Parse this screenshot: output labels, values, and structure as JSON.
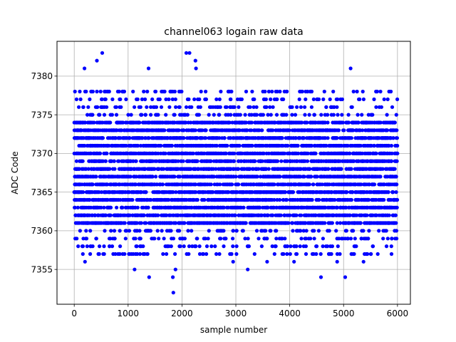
{
  "chart_data": {
    "type": "scatter",
    "title": "channel063 logain raw data",
    "xlabel": "sample number",
    "ylabel": "ADC Code",
    "xlim": [
      -320,
      6240
    ],
    "ylim": [
      7350.5,
      7384.5
    ],
    "xticks": [
      0,
      1000,
      2000,
      3000,
      4000,
      5000,
      6000
    ],
    "yticks": [
      7355,
      7360,
      7365,
      7370,
      7375,
      7380
    ],
    "grid": true,
    "color": "#0000ff",
    "sample_count": 6000,
    "y_core_range": [
      7361,
      7374
    ],
    "y_overall_range": [
      7352,
      7383
    ],
    "outliers": [
      {
        "x": 520,
        "y": 7383
      },
      {
        "x": 2080,
        "y": 7383
      },
      {
        "x": 2140,
        "y": 7383
      },
      {
        "x": 2250,
        "y": 7382
      },
      {
        "x": 420,
        "y": 7382
      },
      {
        "x": 190,
        "y": 7381
      },
      {
        "x": 1380,
        "y": 7381
      },
      {
        "x": 2260,
        "y": 7381
      },
      {
        "x": 5130,
        "y": 7381
      },
      {
        "x": 1840,
        "y": 7352
      },
      {
        "x": 1830,
        "y": 7354
      },
      {
        "x": 1390,
        "y": 7354
      },
      {
        "x": 4580,
        "y": 7354
      },
      {
        "x": 5030,
        "y": 7354
      },
      {
        "x": 1120,
        "y": 7355
      },
      {
        "x": 1880,
        "y": 7355
      },
      {
        "x": 3220,
        "y": 7355
      },
      {
        "x": 200,
        "y": 7356
      },
      {
        "x": 2950,
        "y": 7356
      },
      {
        "x": 3580,
        "y": 7356
      },
      {
        "x": 4080,
        "y": 7356
      },
      {
        "x": 4880,
        "y": 7356
      },
      {
        "x": 5370,
        "y": 7356
      }
    ]
  }
}
